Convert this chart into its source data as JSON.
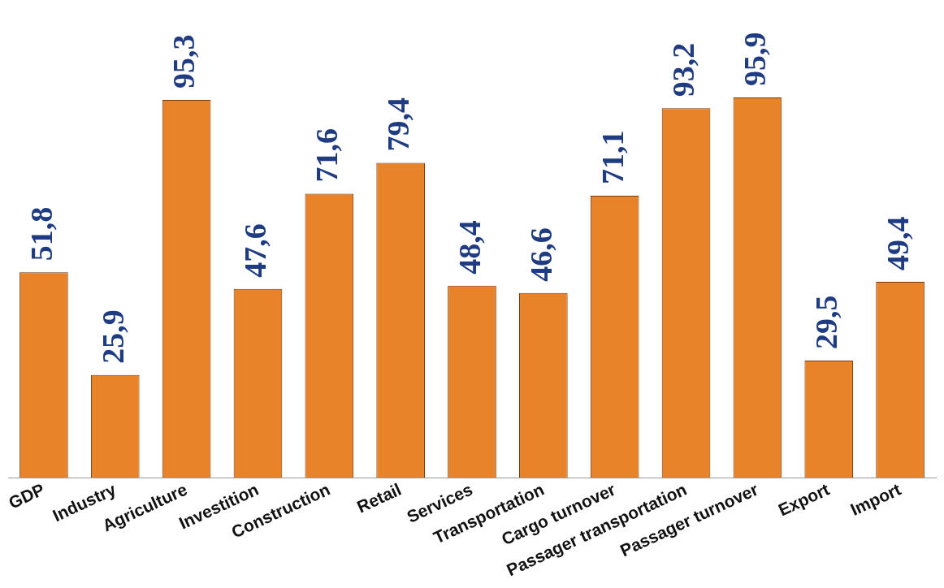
{
  "chart_data": {
    "type": "bar",
    "categories": [
      "GDP",
      "Industry",
      "Agriculture",
      "Investition",
      "Construction",
      "Retail",
      "Services",
      "Transportation",
      "Cargo turnover",
      "Passager transportation",
      "Passager turnover",
      "Export",
      "Import"
    ],
    "values": [
      51.8,
      25.9,
      95.3,
      47.6,
      71.6,
      79.4,
      48.4,
      46.6,
      71.1,
      93.2,
      95.9,
      29.5,
      49.4
    ],
    "value_labels": [
      "51,8",
      "25,9",
      "95,3",
      "47,6",
      "71,6",
      "79,4",
      "48,4",
      "46,6",
      "71,1",
      "93,2",
      "95,9",
      "29,5",
      "49,4"
    ],
    "color": "#e8832a",
    "grid": false,
    "legend": false
  }
}
